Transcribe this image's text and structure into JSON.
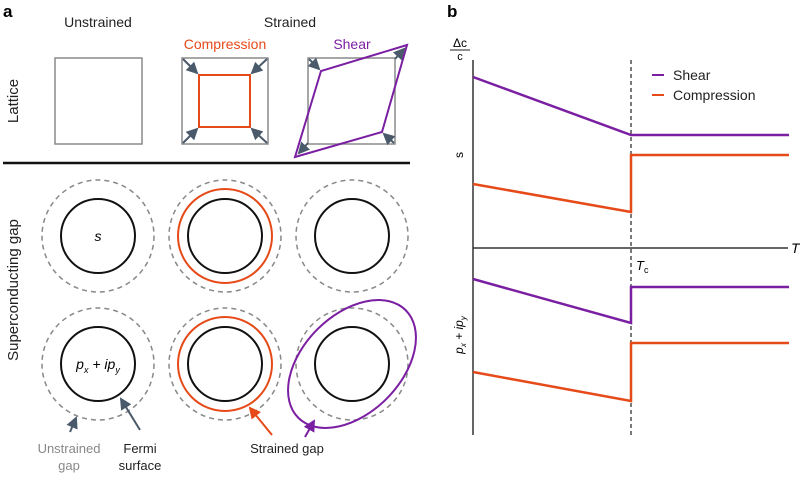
{
  "panel_a": {
    "label": "a",
    "col_unstrained": "Unstrained",
    "col_strained": "Strained",
    "compression": "Compression",
    "shear": "Shear",
    "row_lattice": "Lattice",
    "row_gap": "Superconducting gap",
    "s_label": "s",
    "p_label": "p",
    "p_sub_x": "x",
    "p_plus": " + i",
    "p_sub_y": "y",
    "unstrained_gap": [
      "Unstrained",
      "gap"
    ],
    "fermi_surface": [
      "Fermi",
      "surface"
    ],
    "strained_gap": "Strained gap"
  },
  "panel_b": {
    "label": "b",
    "y_label_num": "Δc",
    "y_label_den": "c",
    "x_label": "T",
    "tc_label": "T",
    "tc_sub": "c",
    "upper_label": "s",
    "lower_label_p": "p",
    "lower_sub_x": "x",
    "lower_plus": " + ip",
    "lower_sub_y": "y",
    "legend": [
      "Shear",
      "Compression"
    ]
  },
  "colors": {
    "shear": "#7b1fa2",
    "compression": "#e64a19",
    "lattice": "#8a8a8a",
    "arrow": "#4a5a6a",
    "fermi": "#111111"
  }
}
